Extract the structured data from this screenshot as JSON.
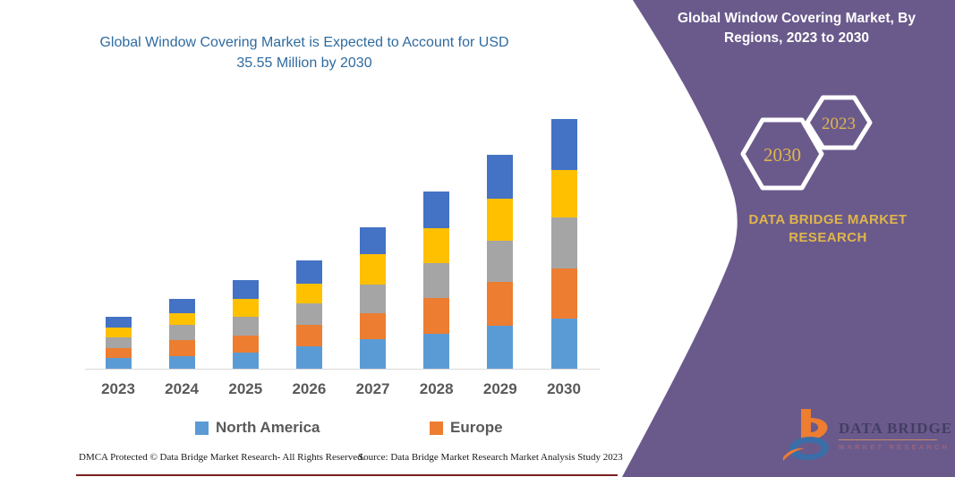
{
  "chart_title": "Global Window Covering Market is Expected to Account for USD 35.55 Million by 2030",
  "chart_data": {
    "type": "bar",
    "stacked": true,
    "title": "Global Window Covering Market is Expected to Account for USD 35.55 Million by 2030",
    "xlabel": "",
    "ylabel": "",
    "units": "USD Million (estimated from bar heights; 2030 total = 35.55)",
    "grid": false,
    "legend_position": "bottom",
    "ylim": [
      0,
      38
    ],
    "categories": [
      "2023",
      "2024",
      "2025",
      "2026",
      "2027",
      "2028",
      "2029",
      "2030"
    ],
    "series": [
      {
        "name": "North America",
        "color": "#5B9BD5",
        "in_legend": true,
        "values": [
          1.5,
          1.8,
          2.3,
          3.2,
          4.3,
          5.0,
          6.1,
          7.2
        ]
      },
      {
        "name": "Europe",
        "color": "#ED7D31",
        "in_legend": true,
        "values": [
          1.5,
          2.3,
          2.5,
          3.1,
          3.6,
          5.1,
          6.3,
          7.2
        ]
      },
      {
        "name": "(unlabeled gray series)",
        "color": "#A5A5A5",
        "in_legend": false,
        "values": [
          1.5,
          2.2,
          2.7,
          3.1,
          4.2,
          5.0,
          5.9,
          7.2
        ]
      },
      {
        "name": "(unlabeled yellow series)",
        "color": "#FFC000",
        "in_legend": false,
        "values": [
          1.4,
          1.6,
          2.5,
          2.8,
          4.3,
          5.0,
          6.1,
          6.9
        ]
      },
      {
        "name": "(unlabeled dark blue series)",
        "color": "#4472C4",
        "in_legend": false,
        "values": [
          1.5,
          2.1,
          2.7,
          3.3,
          3.9,
          5.3,
          6.2,
          7.2
        ]
      }
    ],
    "totals": [
      7.4,
      10.0,
      12.7,
      15.5,
      20.3,
      25.4,
      30.6,
      35.7
    ]
  },
  "legend": {
    "items": [
      {
        "label": "North America",
        "color": "#5B9BD5"
      },
      {
        "label": "Europe",
        "color": "#ED7D31"
      }
    ]
  },
  "footer": {
    "left": "DMCA Protected © Data Bridge Market Research-  All Rights Reserved.",
    "right": "Source: Data Bridge Market Research  Market Analysis Study 2023"
  },
  "side_panel": {
    "title": "Global Window Covering Market, By Regions, 2023 to 2030",
    "hexagon_front_label": "2030",
    "hexagon_back_label": "2023",
    "brand_line1": "DATA BRIDGE MARKET",
    "brand_line2": "RESEARCH",
    "logo_primary": "DATA BRIDGE",
    "logo_secondary": "MARKET RESEARCH",
    "colors": {
      "panel": "#6A5A8C",
      "gold": "#E0B54B",
      "title_blue": "#2F6BA0"
    }
  }
}
